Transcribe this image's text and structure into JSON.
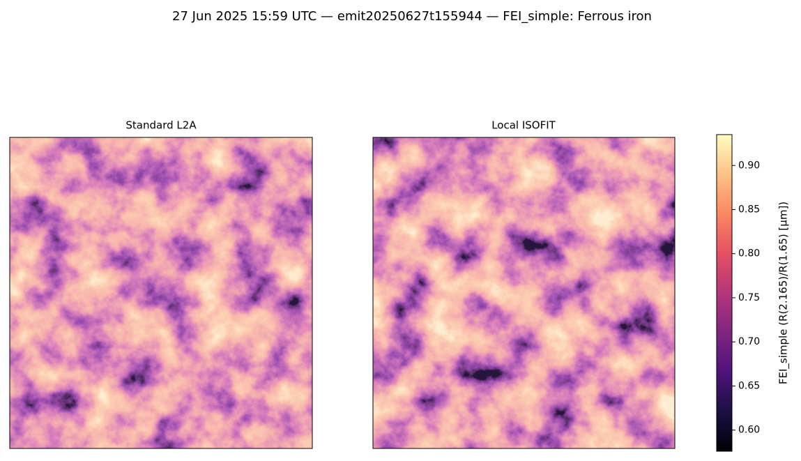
{
  "chart_data": {
    "type": "image",
    "title": "27 Jun 2025 15:59 UTC — emit20250627t155944 — FEI_simple: Ferrous iron",
    "panels": [
      {
        "title": "Standard L2A"
      },
      {
        "title": "Local ISOFIT"
      }
    ],
    "colormap": "magma",
    "colorbar_label": "FEI_simple  (R(2.165)/R(1.65)  [µm])",
    "clim": [
      0.576,
      0.935
    ],
    "cticks": [
      {
        "value": 0.6,
        "label": "0.60"
      },
      0.65,
      {
        "value": 0.7,
        "label": "0.70"
      },
      0.75,
      {
        "value": 0.8,
        "label": "0.80"
      },
      0.85,
      {
        "value": 0.9,
        "label": "0.90"
      }
    ]
  }
}
